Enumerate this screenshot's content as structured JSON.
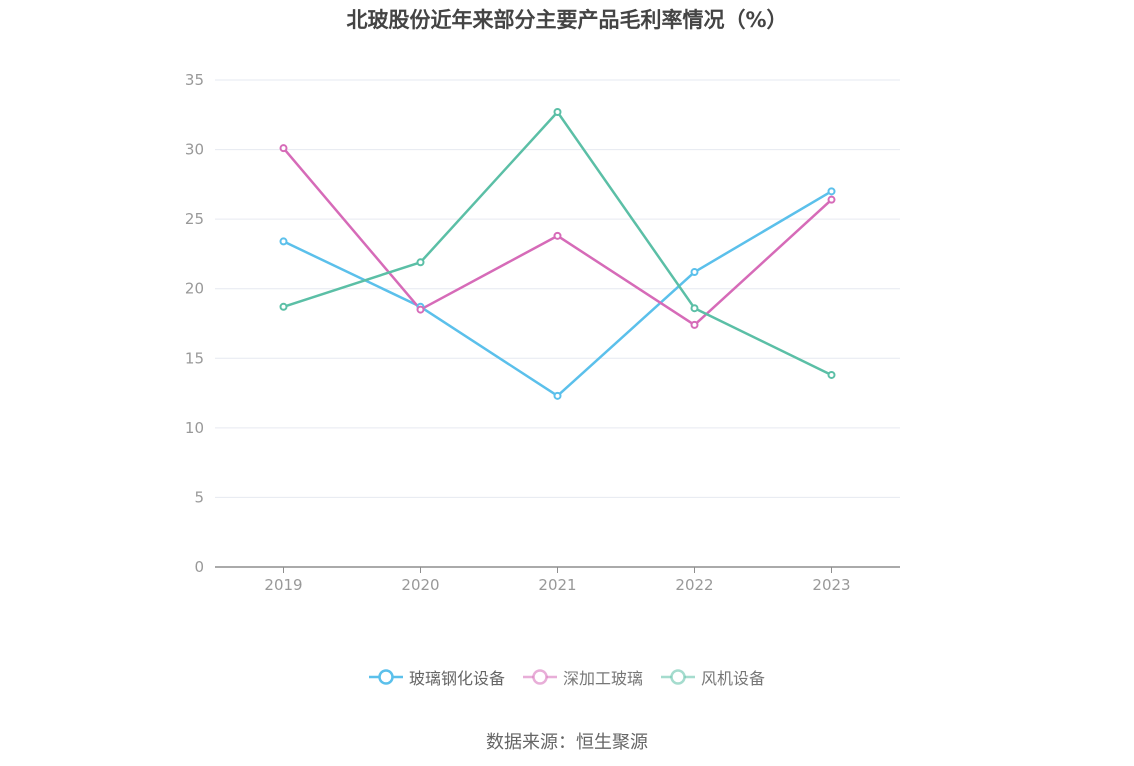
{
  "title": "北玻股份近年来部分主要产品毛利率情况（%）",
  "source": "数据来源：恒生聚源",
  "chart_data": {
    "type": "line",
    "title": "北玻股份近年来部分主要产品毛利率情况（%）",
    "categories": [
      "2019",
      "2020",
      "2021",
      "2022",
      "2023"
    ],
    "ylim": [
      0,
      35
    ],
    "yticks": [
      0,
      5,
      10,
      15,
      20,
      25,
      30,
      35
    ],
    "grid": true,
    "legend_position": "bottom",
    "series": [
      {
        "name": "玻璃钢化设备",
        "color": "#5BC0EB",
        "values": [
          23.4,
          18.7,
          12.3,
          21.2,
          27.0
        ]
      },
      {
        "name": "深加工玻璃",
        "color": "#D66BB8",
        "values": [
          30.1,
          18.5,
          23.8,
          17.4,
          26.4
        ]
      },
      {
        "name": "风机设备",
        "color": "#5BBFA6",
        "values": [
          18.7,
          21.9,
          32.7,
          18.6,
          13.8
        ]
      }
    ]
  }
}
